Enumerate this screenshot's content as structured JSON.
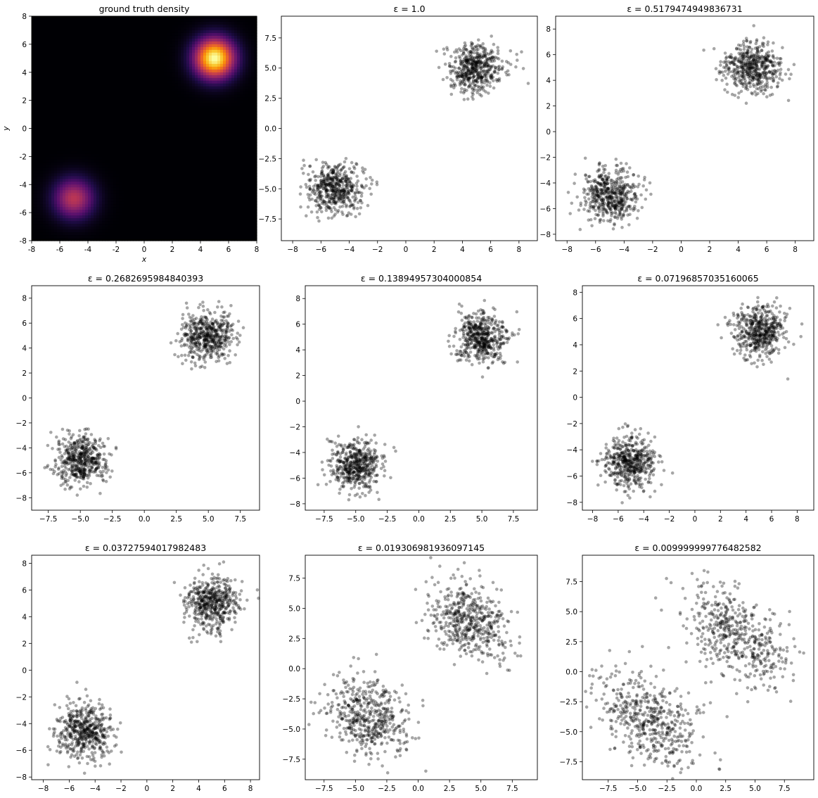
{
  "figure": {
    "background": "#ffffff",
    "point_color": "#000000",
    "point_alpha": 0.35
  },
  "chart_data": [
    {
      "type": "heatmap",
      "title": "ground truth density",
      "xlabel": "x",
      "ylabel": "y",
      "colormap": "inferno",
      "xlim": [
        -8,
        8
      ],
      "ylim": [
        -8,
        8
      ],
      "xticks": [
        "-8",
        "-6",
        "-4",
        "-2",
        "0",
        "2",
        "4",
        "6",
        "8"
      ],
      "yticks": [
        "-8",
        "-6",
        "-4",
        "-2",
        "0",
        "2",
        "4",
        "6",
        "8"
      ],
      "components": [
        {
          "mean": [
            5,
            5
          ],
          "std": 1.0,
          "weight": 1.0
        },
        {
          "mean": [
            -5,
            -5
          ],
          "std": 1.0,
          "weight": 0.5
        }
      ]
    },
    {
      "type": "scatter",
      "title": "ε = 1.0",
      "xlim": [
        -8.8,
        9.3
      ],
      "ylim": [
        -9.3,
        9.3
      ],
      "xticks": [
        -8,
        -6,
        -4,
        -2,
        0,
        2,
        4,
        6,
        8
      ],
      "yticks": [
        -7.5,
        -5.0,
        -2.5,
        0.0,
        2.5,
        5.0,
        7.5
      ],
      "yticks_text": [
        "−7.5",
        "−5.0",
        "−2.5",
        "0.0",
        "2.5",
        "5.0",
        "7.5"
      ],
      "xticks_text": [
        "−8",
        "−6",
        "−4",
        "−2",
        "0",
        "2",
        "4",
        "6",
        "8"
      ],
      "clusters": [
        {
          "center": [
            5.0,
            5.0
          ],
          "spread": [
            1.0,
            1.0
          ],
          "rho": 0.0,
          "n": 500
        },
        {
          "center": [
            -5.0,
            -5.0
          ],
          "spread": [
            1.0,
            1.0
          ],
          "rho": 0.0,
          "n": 500
        }
      ]
    },
    {
      "type": "scatter",
      "title": "ε = 0.5179474949836731",
      "xlim": [
        -8.8,
        9.3
      ],
      "ylim": [
        -8.5,
        9.0
      ],
      "xticks": [
        -8,
        -6,
        -4,
        -2,
        0,
        2,
        4,
        6,
        8
      ],
      "yticks": [
        -8,
        -6,
        -4,
        -2,
        0,
        2,
        4,
        6,
        8
      ],
      "yticks_text": [
        "−8",
        "−6",
        "−4",
        "−2",
        "0",
        "2",
        "4",
        "6",
        "8"
      ],
      "xticks_text": [
        "−8",
        "−6",
        "−4",
        "−2",
        "0",
        "2",
        "4",
        "6",
        "8"
      ],
      "clusters": [
        {
          "center": [
            5.0,
            5.0
          ],
          "spread": [
            1.0,
            1.0
          ],
          "rho": 0.0,
          "n": 500
        },
        {
          "center": [
            -5.0,
            -5.0
          ],
          "spread": [
            1.0,
            1.0
          ],
          "rho": 0.0,
          "n": 500
        }
      ]
    },
    {
      "type": "scatter",
      "title": "ε = 0.2682695984840393",
      "xlim": [
        -8.8,
        9.0
      ],
      "ylim": [
        -9.0,
        9.0
      ],
      "xticks": [
        -7.5,
        -5.0,
        -2.5,
        0.0,
        2.5,
        5.0,
        7.5
      ],
      "yticks": [
        -8,
        -6,
        -4,
        -2,
        0,
        2,
        4,
        6,
        8
      ],
      "yticks_text": [
        "−8",
        "−6",
        "−4",
        "−2",
        "0",
        "2",
        "4",
        "6",
        "8"
      ],
      "xticks_text": [
        "−7.5",
        "−5.0",
        "−2.5",
        "0.0",
        "2.5",
        "5.0",
        "7.5"
      ],
      "clusters": [
        {
          "center": [
            5.0,
            5.0
          ],
          "spread": [
            1.0,
            1.0
          ],
          "rho": 0.0,
          "n": 500
        },
        {
          "center": [
            -5.0,
            -5.0
          ],
          "spread": [
            1.0,
            1.0
          ],
          "rho": 0.0,
          "n": 500
        }
      ]
    },
    {
      "type": "scatter",
      "title": "ε = 0.13894957304000854",
      "xlim": [
        -9.0,
        9.4
      ],
      "ylim": [
        -8.5,
        9.0
      ],
      "xticks": [
        -7.5,
        -5.0,
        -2.5,
        0.0,
        2.5,
        5.0,
        7.5
      ],
      "yticks": [
        -8,
        -6,
        -4,
        -2,
        0,
        2,
        4,
        6,
        8
      ],
      "yticks_text": [
        "−8",
        "−6",
        "−4",
        "−2",
        "0",
        "2",
        "4",
        "6",
        "8"
      ],
      "xticks_text": [
        "−7.5",
        "−5.0",
        "−2.5",
        "0.0",
        "2.5",
        "5.0",
        "7.5"
      ],
      "clusters": [
        {
          "center": [
            5.0,
            5.0
          ],
          "spread": [
            1.0,
            1.0
          ],
          "rho": 0.0,
          "n": 500
        },
        {
          "center": [
            -5.0,
            -5.0
          ],
          "spread": [
            1.0,
            1.0
          ],
          "rho": 0.0,
          "n": 500
        }
      ]
    },
    {
      "type": "scatter",
      "title": "ε = 0.07196857035160065",
      "xlim": [
        -8.8,
        9.3
      ],
      "ylim": [
        -8.6,
        8.5
      ],
      "xticks": [
        -8,
        -6,
        -4,
        -2,
        0,
        2,
        4,
        6,
        8
      ],
      "yticks": [
        -8,
        -6,
        -4,
        -2,
        0,
        2,
        4,
        6,
        8
      ],
      "yticks_text": [
        "−8",
        "−6",
        "−4",
        "−2",
        "0",
        "2",
        "4",
        "6",
        "8"
      ],
      "xticks_text": [
        "−8",
        "−6",
        "−4",
        "−2",
        "0",
        "2",
        "4",
        "6",
        "8"
      ],
      "clusters": [
        {
          "center": [
            5.0,
            5.0
          ],
          "spread": [
            1.0,
            1.0
          ],
          "rho": 0.0,
          "n": 500
        },
        {
          "center": [
            -5.0,
            -5.0
          ],
          "spread": [
            1.0,
            1.0
          ],
          "rho": 0.0,
          "n": 500
        }
      ]
    },
    {
      "type": "scatter",
      "title": "ε = 0.03727594017982483",
      "xlim": [
        -8.9,
        8.7
      ],
      "ylim": [
        -8.2,
        8.6
      ],
      "xticks": [
        -8,
        -6,
        -4,
        -2,
        0,
        2,
        4,
        6,
        8
      ],
      "yticks": [
        -8,
        -6,
        -4,
        -2,
        0,
        2,
        4,
        6,
        8
      ],
      "yticks_text": [
        "−8",
        "−6",
        "−4",
        "−2",
        "0",
        "2",
        "4",
        "6",
        "8"
      ],
      "xticks_text": [
        "−8",
        "−6",
        "−4",
        "−2",
        "0",
        "2",
        "4",
        "6",
        "8"
      ],
      "clusters": [
        {
          "center": [
            5.0,
            5.0
          ],
          "spread": [
            1.0,
            1.0
          ],
          "rho": 0.0,
          "n": 500
        },
        {
          "center": [
            -4.8,
            -4.6
          ],
          "spread": [
            1.1,
            1.0
          ],
          "rho": 0.0,
          "n": 500
        }
      ]
    },
    {
      "type": "scatter",
      "title": "ε = 0.019306981936097145",
      "xlim": [
        -9.0,
        9.5
      ],
      "ylim": [
        -9.2,
        9.4
      ],
      "xticks": [
        -7.5,
        -5.0,
        -2.5,
        0.0,
        2.5,
        5.0,
        7.5
      ],
      "yticks": [
        -7.5,
        -5.0,
        -2.5,
        0.0,
        2.5,
        5.0,
        7.5
      ],
      "yticks_text": [
        "−7.5",
        "−5.0",
        "−2.5",
        "0.0",
        "2.5",
        "5.0",
        "7.5"
      ],
      "xticks_text": [
        "−7.5",
        "−5.0",
        "−2.5",
        "0.0",
        "2.5",
        "5.0",
        "7.5"
      ],
      "clusters": [
        {
          "center": [
            4.0,
            4.0
          ],
          "spread": [
            1.6,
            1.6
          ],
          "rho": -0.2,
          "n": 500
        },
        {
          "center": [
            -4.0,
            -4.0
          ],
          "spread": [
            1.6,
            1.6
          ],
          "rho": -0.2,
          "n": 500
        }
      ]
    },
    {
      "type": "scatter",
      "title": "ε = 0.009999999776482582",
      "xlim": [
        -9.7,
        10.0
      ],
      "ylim": [
        -9.0,
        9.7
      ],
      "xticks": [
        -7.5,
        -5.0,
        -2.5,
        0.0,
        2.5,
        5.0,
        7.5
      ],
      "yticks": [
        -7.5,
        -5.0,
        -2.5,
        0.0,
        2.5,
        5.0,
        7.5
      ],
      "yticks_text": [
        "−7.5",
        "−5.0",
        "−2.5",
        "0.0",
        "2.5",
        "5.0",
        "7.5"
      ],
      "xticks_text": [
        "−7.5",
        "−5.0",
        "−2.5",
        "0.0",
        "2.5",
        "5.0",
        "7.5"
      ],
      "clusters": [
        {
          "center": [
            3.5,
            3.0
          ],
          "spread": [
            2.2,
            2.2
          ],
          "rho": -0.5,
          "n": 500
        },
        {
          "center": [
            -4.0,
            -4.0
          ],
          "spread": [
            2.2,
            2.0
          ],
          "rho": -0.5,
          "n": 500
        }
      ]
    }
  ]
}
